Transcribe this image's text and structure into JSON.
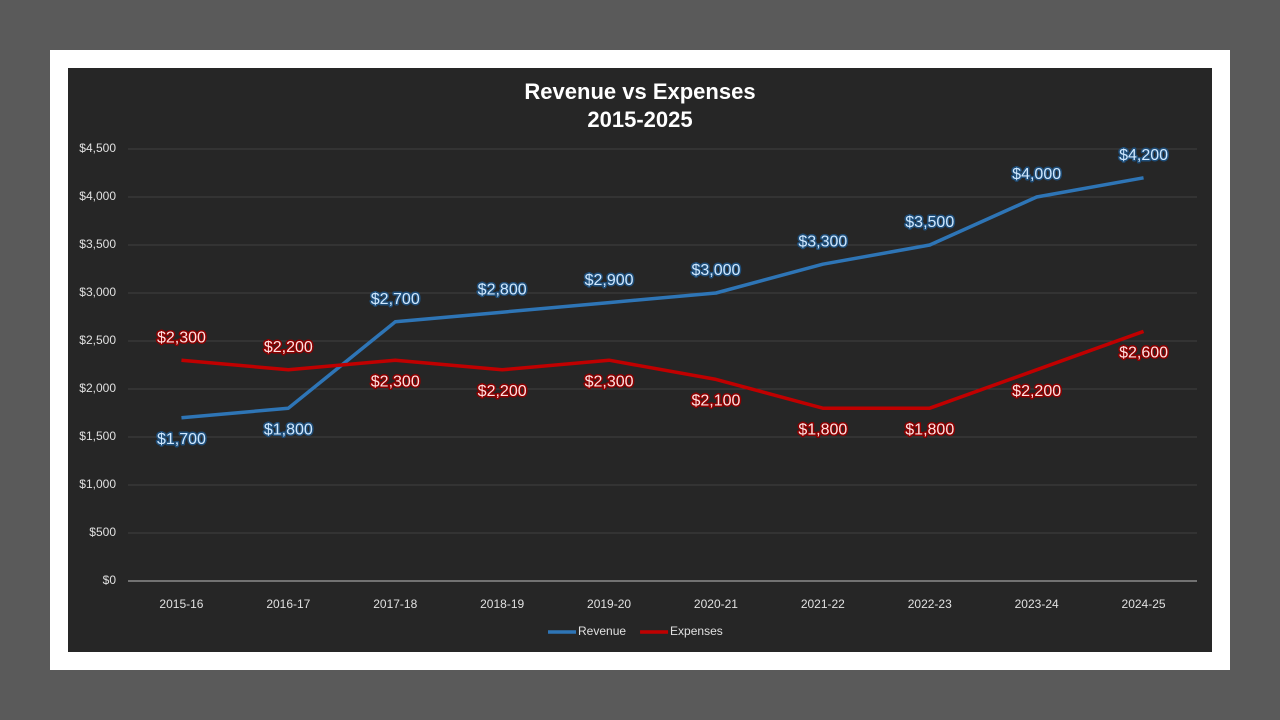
{
  "chart_data": {
    "type": "line",
    "title": "Revenue vs Expenses",
    "subtitle": "2015-2025",
    "categories": [
      "2015-16",
      "2016-17",
      "2017-18",
      "2018-19",
      "2019-20",
      "2020-21",
      "2021-22",
      "2022-23",
      "2023-24",
      "2024-25"
    ],
    "series": [
      {
        "name": "Revenue",
        "color": "#2e75b6",
        "values": [
          1700,
          1800,
          2700,
          2800,
          2900,
          3000,
          3300,
          3500,
          4000,
          4200
        ],
        "value_labels": [
          "$1,700",
          "$1,800",
          "$2,700",
          "$2,800",
          "$2,900",
          "$3,000",
          "$3,300",
          "$3,500",
          "$4,000",
          "$4,200"
        ]
      },
      {
        "name": "Expenses",
        "color": "#c00000",
        "values": [
          2300,
          2200,
          2300,
          2200,
          2300,
          2100,
          1800,
          1800,
          2200,
          2600
        ],
        "value_labels": [
          "$2,300",
          "$2,200",
          "$2,300",
          "$2,200",
          "$2,300",
          "$2,100",
          "$1,800",
          "$1,800",
          "$2,200",
          "$2,600"
        ]
      }
    ],
    "ylim": [
      0,
      4500
    ],
    "yticks": [
      {
        "value": 0,
        "label": "$0"
      },
      {
        "value": 500,
        "label": "$500"
      },
      {
        "value": 1000,
        "label": "$1,000"
      },
      {
        "value": 1500,
        "label": "$1,500"
      },
      {
        "value": 2000,
        "label": "$2,000"
      },
      {
        "value": 2500,
        "label": "$2,500"
      },
      {
        "value": 3000,
        "label": "$3,000"
      },
      {
        "value": 3500,
        "label": "$3,500"
      },
      {
        "value": 4000,
        "label": "$4,000"
      },
      {
        "value": 4500,
        "label": "$4,500"
      }
    ],
    "grid": true,
    "legend": "bottom"
  }
}
